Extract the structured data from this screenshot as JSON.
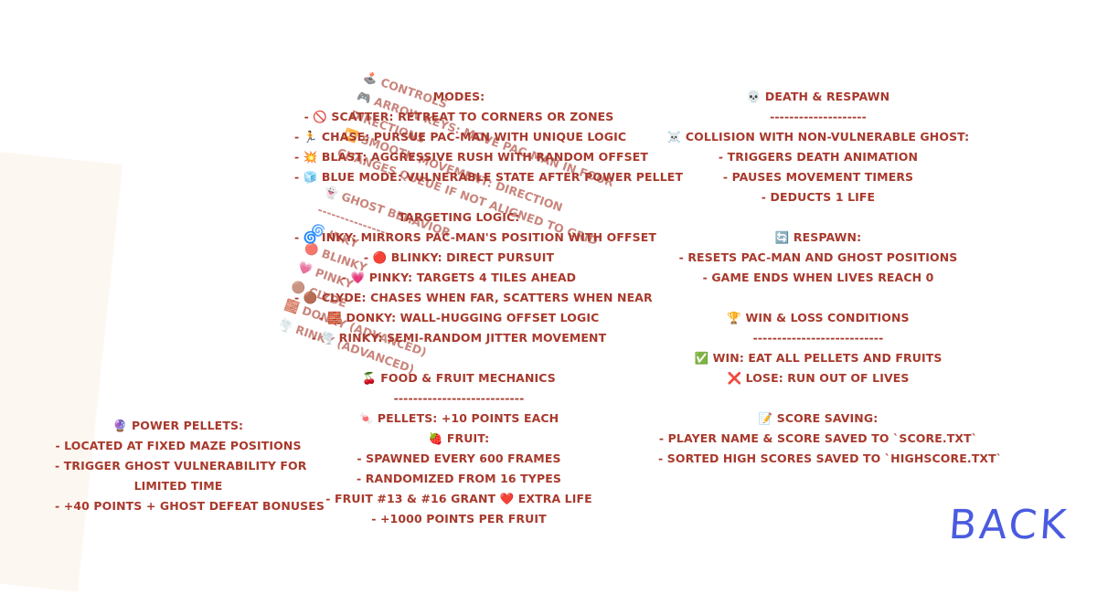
{
  "power_pellets": {
    "lines": [
      "🔮 POWER PELLETS:",
      "- LOCATED AT FIXED MAZE POSITIONS",
      "- TRIGGER GHOST VULNERABILITY FOR",
      "LIMITED TIME",
      "- +40 POINTS + GHOST DEFEAT BONUSES"
    ]
  },
  "modes": {
    "lines": [
      "MODES:",
      "- 🚫 SCATTER: RETREAT TO CORNERS OR ZONES",
      "- 🏃 CHASE: PURSUE PAC-MAN WITH UNIQUE LOGIC",
      "- 💥 BLAST: AGGRESSIVE RUSH WITH RANDOM OFFSET",
      "- 🧊 BLUE MODE: VULNERABLE STATE AFTER POWER PELLET",
      "",
      "TARGETING LOGIC:",
      "- 🌀 INKY: MIRRORS PAC-MAN'S POSITION WITH OFFSET",
      "- 🔴 BLINKY: DIRECT PURSUIT",
      "- 💗 PINKY: TARGETS 4 TILES AHEAD",
      "- 🟤 CLYDE: CHASES WHEN FAR, SCATTERS WHEN NEAR",
      "- 🧱 DONKY: WALL-HUGGING OFFSET LOGIC",
      "- 🌪️ RINKY: SEMI-RANDOM JITTER MOVEMENT"
    ]
  },
  "food_fruit": {
    "lines": [
      "🍒 FOOD & FRUIT MECHANICS",
      "---------------------------",
      "🍬 PELLETS: +10 POINTS EACH",
      "🍓 FRUIT:",
      "- SPAWNED EVERY 600 FRAMES",
      "- RANDOMIZED FROM 16 TYPES",
      "- FRUIT #13 & #16 GRANT ❤️ EXTRA LIFE",
      "- +1000 POINTS PER FRUIT"
    ]
  },
  "overlay_controls": {
    "lines": [
      "🕹️ CONTROLS",
      "🎮 ARROW KEYS: MOVE PAC-MAN IN FOUR",
      "DIRECTIONS",
      "⏩ SMOOTH MOVEMENT: DIRECTION",
      "CHANGES QUEUE IF NOT ALIGNED TO GRID",
      "",
      "👻 GHOST BEHAVIOR",
      "----------------",
      "🌀 INKY",
      "🔴 BLINKY",
      "💗 PINKY",
      "🟤 CLYDE",
      "🧱 DONKY (ADVANCED)",
      "🌪️ RINKY (ADVANCED)"
    ]
  },
  "death_respawn": {
    "lines": [
      "💀 DEATH & RESPAWN",
      "--------------------",
      "☠️ COLLISION WITH NON-VULNERABLE GHOST:",
      "- TRIGGERS DEATH ANIMATION",
      "- PAUSES MOVEMENT TIMERS",
      "- DEDUCTS 1 LIFE",
      "",
      "🔄 RESPAWN:",
      "- RESETS PAC-MAN AND GHOST POSITIONS",
      "- GAME ENDS WHEN LIVES REACH 0",
      "",
      "🏆 WIN & LOSS CONDITIONS",
      "---------------------------",
      "✅ WIN: EAT ALL PELLETS AND FRUITS",
      "❌ LOSE: RUN OUT OF LIVES",
      "",
      "📝 SCORE SAVING:",
      "- PLAYER NAME & SCORE SAVED TO `SCORE.TXT`",
      "- SORTED HIGH SCORES SAVED TO `HIGHSCORE.TXT`"
    ]
  },
  "back_button": {
    "label": "BACK"
  },
  "colors": {
    "text": "#a8392c",
    "overlay_text": "#b5574a",
    "back": "#4a5be0",
    "background": "#ffffff"
  }
}
